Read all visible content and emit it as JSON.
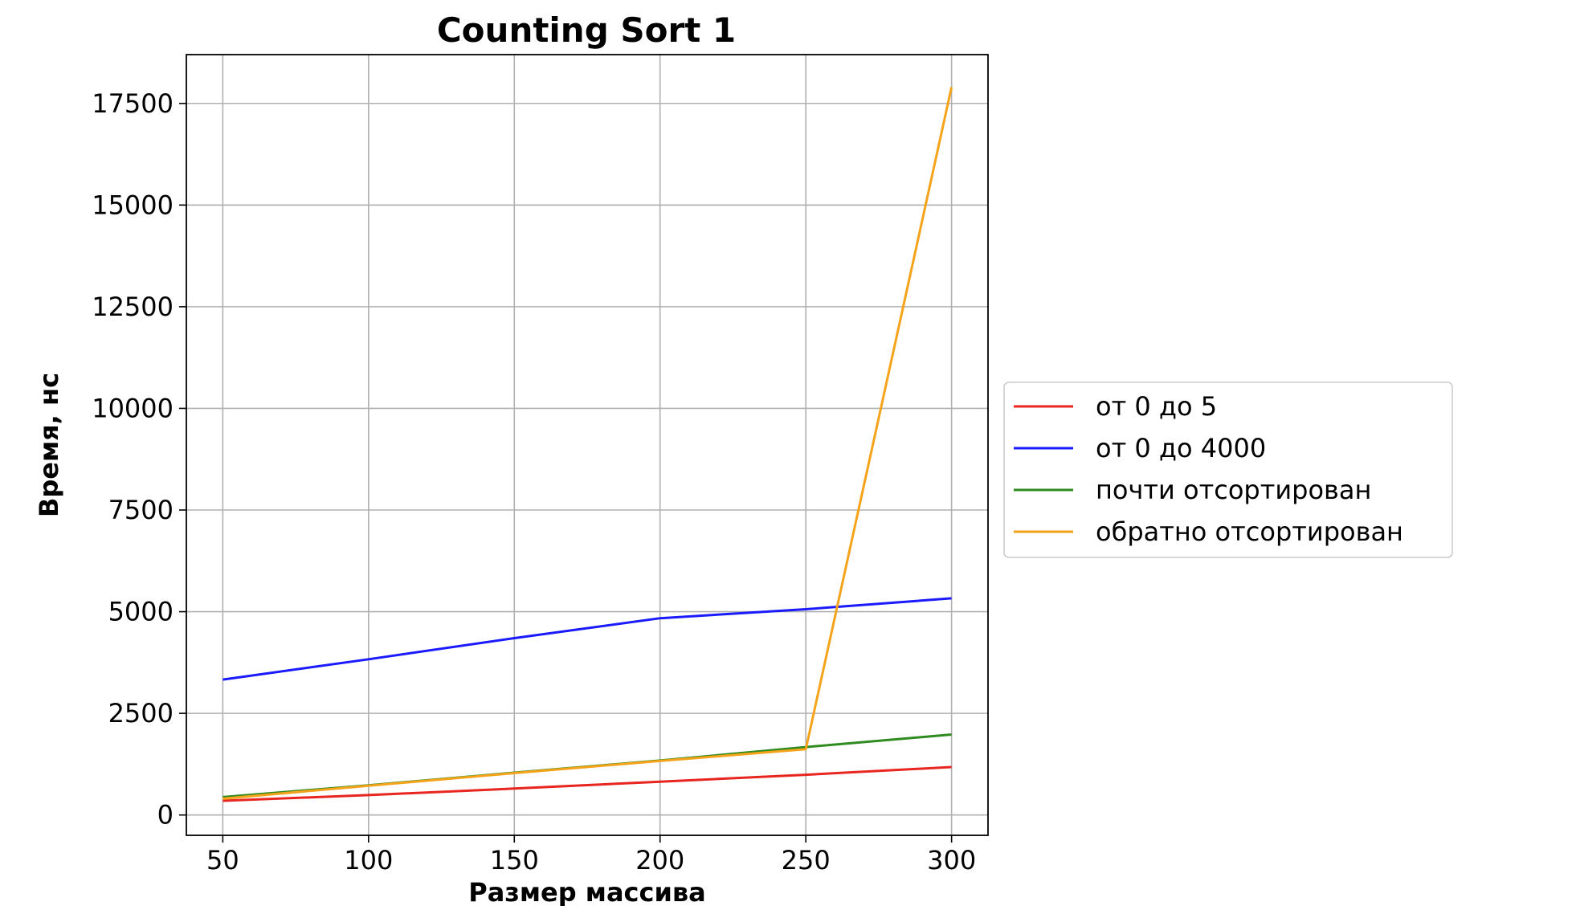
{
  "chart_data": {
    "type": "line",
    "title": "Counting Sort 1",
    "xlabel": "Размер массива",
    "ylabel": "Время, нс",
    "x": [
      50,
      100,
      150,
      200,
      250,
      300
    ],
    "xlim": [
      37.5,
      312.5
    ],
    "ylim": [
      -500,
      18700
    ],
    "xticks": [
      50,
      100,
      150,
      200,
      250,
      300
    ],
    "yticks": [
      0,
      2500,
      5000,
      7500,
      10000,
      12500,
      15000,
      17500
    ],
    "grid": true,
    "legend_position": "center-right-outside",
    "series": [
      {
        "name": "от 0 до 5",
        "color": "#e8261f",
        "values": [
          350,
          490,
          650,
          820,
          990,
          1180
        ]
      },
      {
        "name": "от 0 до 4000",
        "color": "#1a1aff",
        "values": [
          3330,
          3830,
          4350,
          4840,
          5060,
          5330
        ]
      },
      {
        "name": "почти отсортирован",
        "color": "#2e8b1f",
        "values": [
          440,
          730,
          1040,
          1340,
          1670,
          1980
        ]
      },
      {
        "name": "обратно отсортирован",
        "color": "#f5a31a",
        "values": [
          400,
          720,
          1030,
          1330,
          1620,
          17900
        ]
      }
    ]
  }
}
